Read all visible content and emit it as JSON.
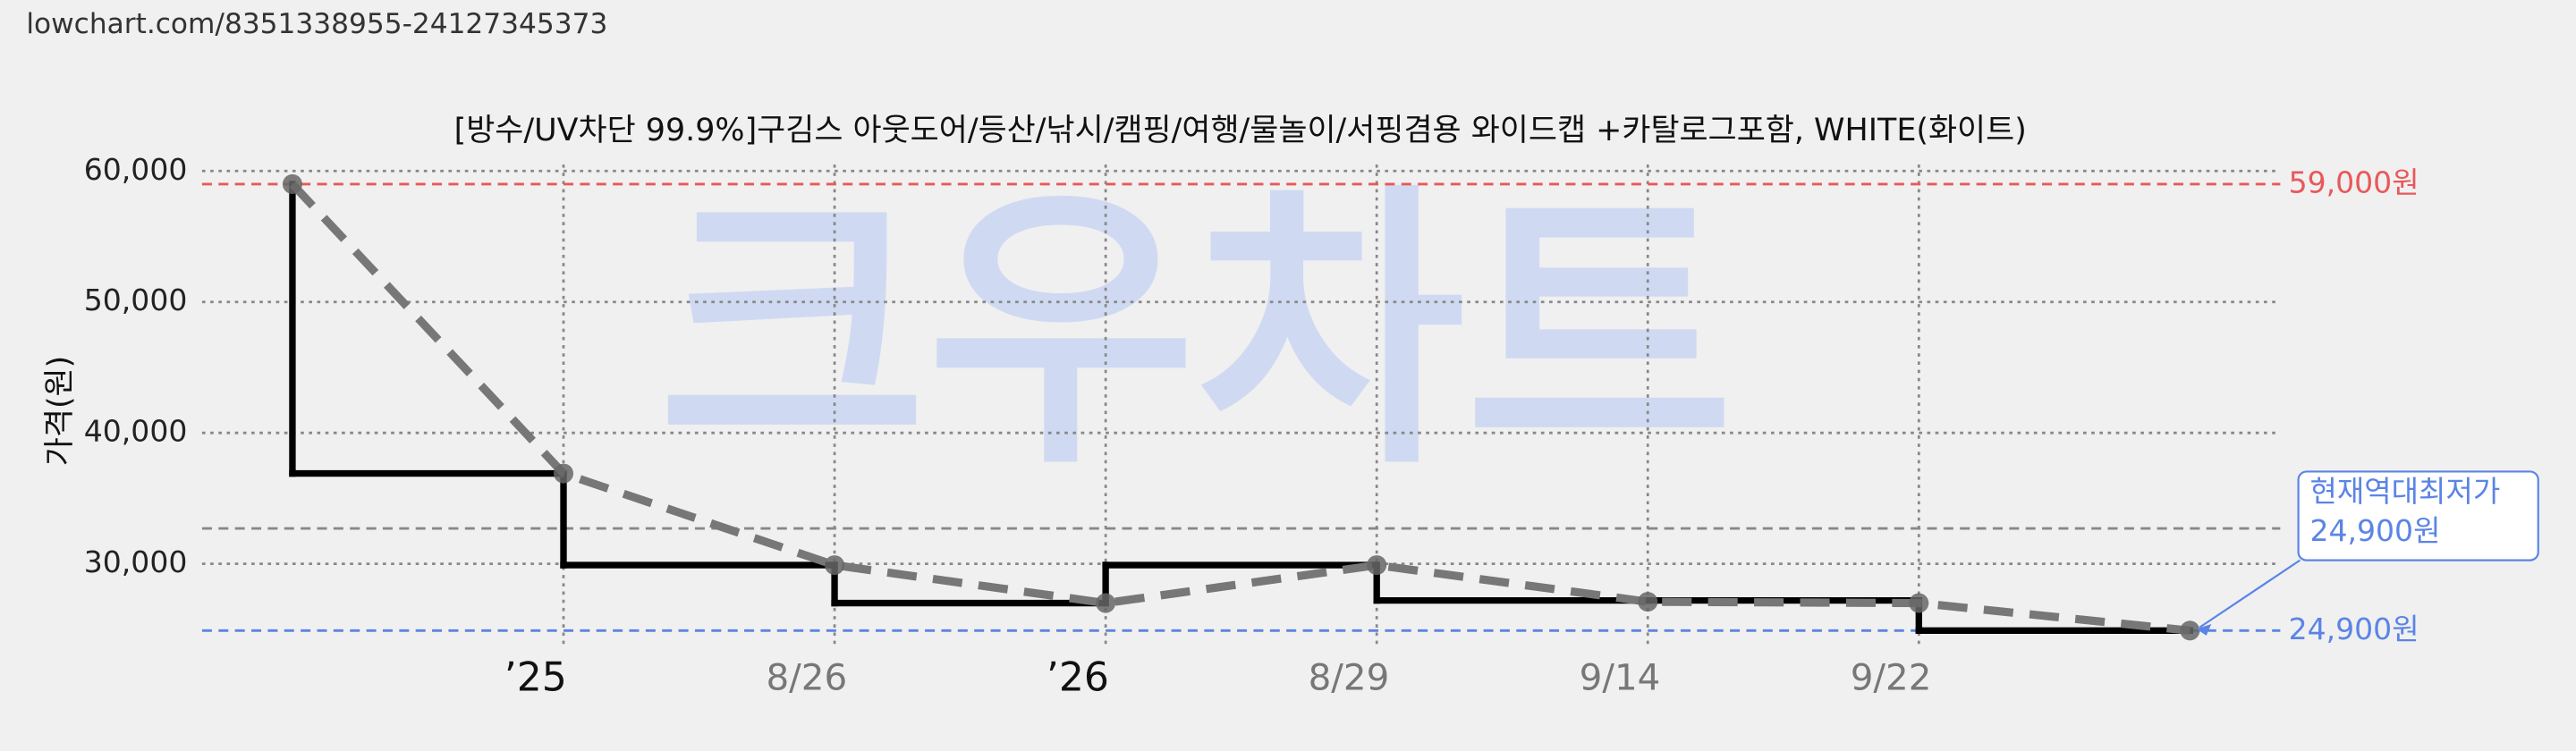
{
  "url": "lowchart.com/8351338955-24127345373",
  "chart_data": {
    "type": "line",
    "title": "[방수/UV차단 99.9%]구김스 아웃도어/등산/낚시/캠핑/여행/물놀이/서핑겸용 와이드캡 +카탈로그포함, WHITE(화이트)",
    "watermark": "크우차트",
    "y_label": "가격(원)",
    "categories": [
      null,
      "’25",
      "8/26",
      "’26",
      "8/29",
      "9/14",
      "9/22",
      null
    ],
    "series": [
      {
        "color": "#777777",
        "style": "dashed",
        "values": [
          59000,
          36900,
          29900,
          27000,
          29900,
          27100,
          27000,
          24900
        ]
      },
      {
        "color": "#000000",
        "style": "step",
        "values": [
          36900,
          29900,
          27000,
          29900,
          27200,
          27200,
          24900,
          null
        ]
      }
    ],
    "ylim": [
      23500,
      60500
    ],
    "yticks": [
      {
        "value": 30000,
        "label": "30,000"
      },
      {
        "value": 40000,
        "label": "40,000"
      },
      {
        "value": 50000,
        "label": "50,000"
      },
      {
        "value": 60000,
        "label": "60,000"
      }
    ],
    "grid": true,
    "reference_lines": [
      {
        "value": 59000,
        "label": "59,000원",
        "color": "#e8585a"
      },
      {
        "value": 32700,
        "color": "#888888"
      },
      {
        "value": 24900,
        "label": "24,900원",
        "color": "#5b84e6"
      }
    ],
    "annotation": {
      "lines": [
        "현재역대최저가",
        "24,900원"
      ],
      "color": "#5b84e6"
    }
  }
}
